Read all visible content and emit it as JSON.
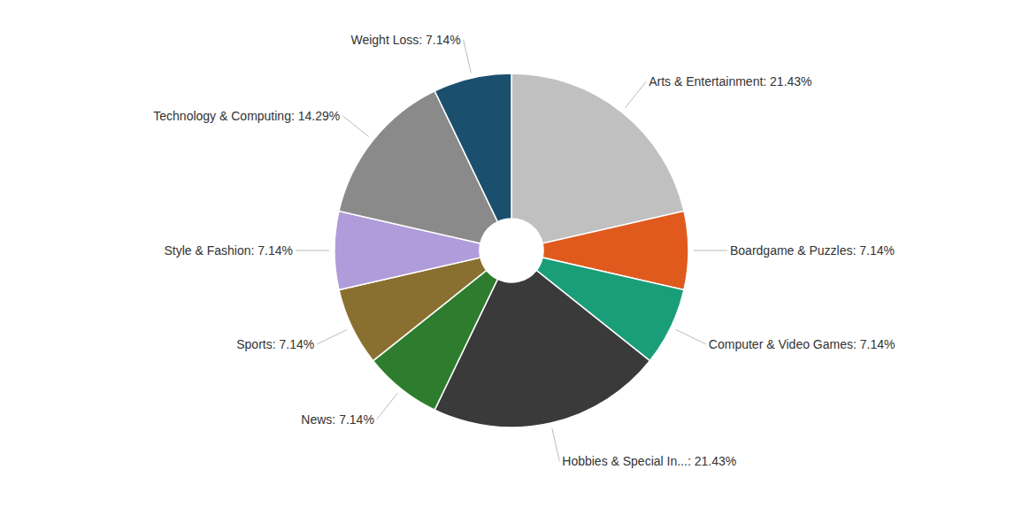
{
  "chart_data": {
    "type": "pie",
    "categories": [
      "Arts & Entertainment: 21.43%",
      "Boardgame & Puzzles: 7.14%",
      "Computer & Video Games: 7.14%",
      "Hobbies & Special In...: 21.43%",
      "News: 7.14%",
      "Sports: 7.14%",
      "Style & Fashion: 7.14%",
      "Technology & Computing: 14.29%",
      "Weight Loss: 7.14%"
    ],
    "values": [
      21.43,
      7.14,
      7.14,
      21.43,
      7.14,
      7.14,
      7.14,
      14.29,
      7.14
    ],
    "colors": [
      "#c0c0c0",
      "#e05a1e",
      "#1a9e7a",
      "#3a3a3a",
      "#2e7d2e",
      "#8a7030",
      "#b09cda",
      "#8a8a8a",
      "#1a4f6e"
    ]
  }
}
